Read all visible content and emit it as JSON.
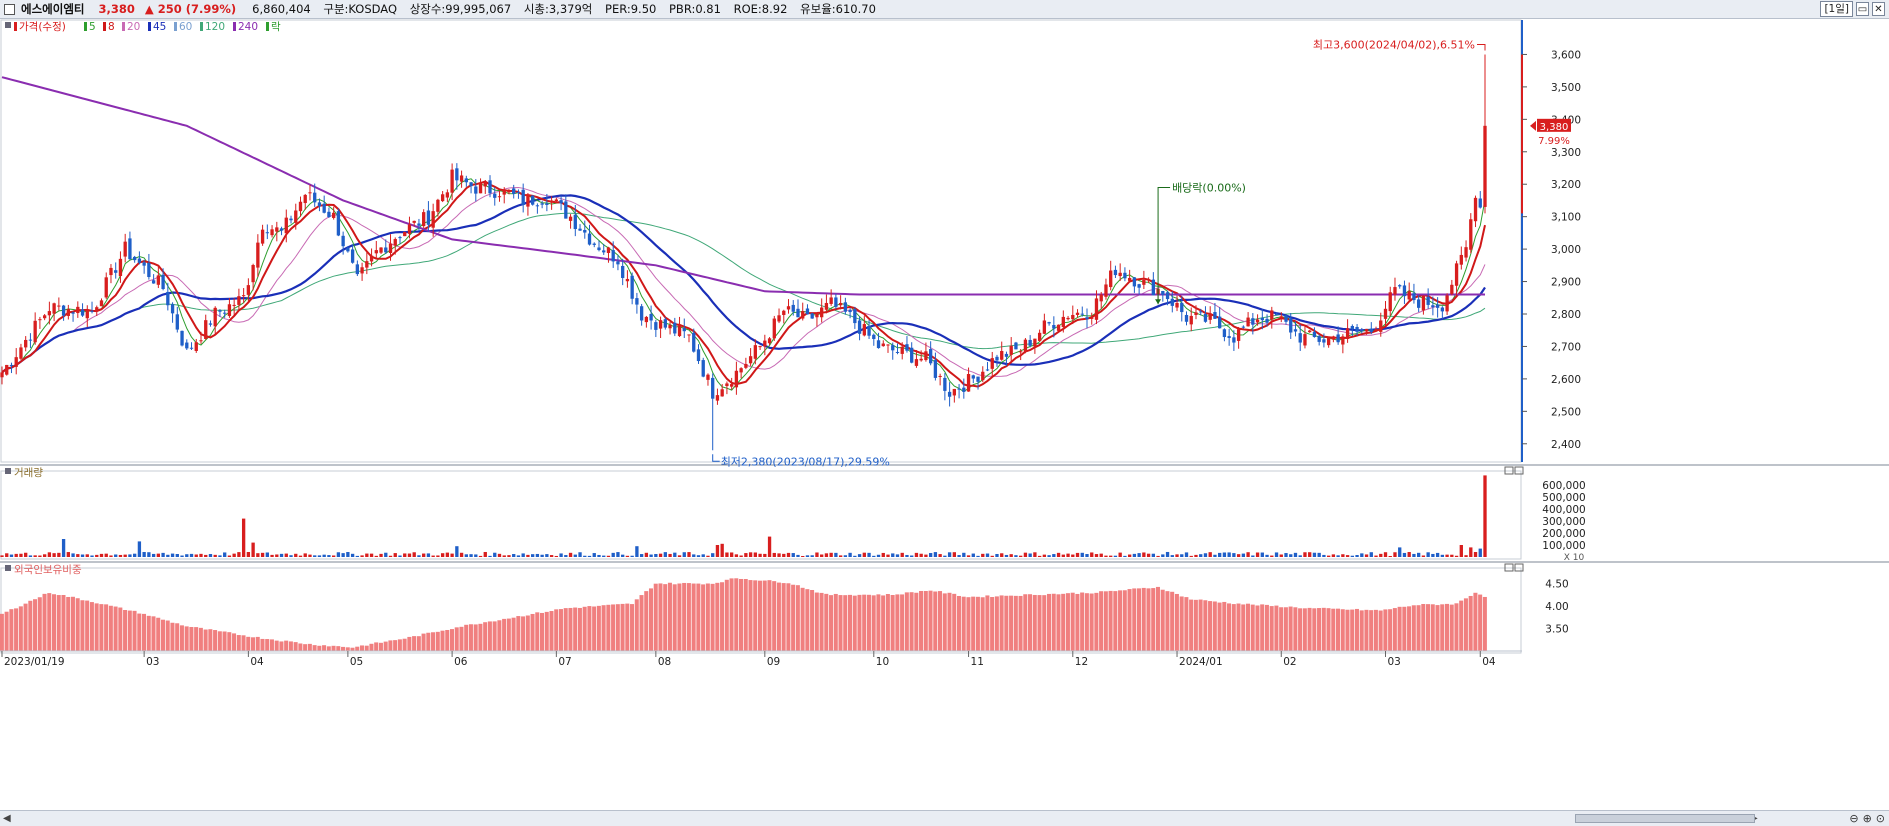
{
  "title_bar": {
    "name": "에스에이엠티",
    "price": "3,380",
    "change": "▲ 250",
    "change_pct": "(7.99%)",
    "volume": "6,860,404",
    "market": "구분:KOSDAQ",
    "shares": "상장수:99,995,067",
    "mcap": "시총:3,379억",
    "per": "PER:9.50",
    "pbr": "PBR:0.81",
    "roe": "ROE:8.92",
    "turnover": "유보율:610.70",
    "period": "[1일]"
  },
  "colors": {
    "up": "#d81e1e",
    "down": "#1f5fc8",
    "ma5": "#2e9e2e",
    "ma8": "#d01818",
    "ma20": "#c86ab4",
    "ma45": "#1a2fb8",
    "ma60": "#7aa0d0",
    "ma120": "#40a878",
    "ma240": "#8a2db0",
    "foreign": "#f07f7f"
  },
  "chart_data": [
    {
      "type": "candlestick",
      "legend": [
        "가격(수정)",
        "5",
        "8",
        "20",
        "45",
        "60",
        "120",
        "240",
        "락"
      ],
      "ylim": [
        2350,
        3700
      ],
      "y_ticks": [
        "3,600",
        "3,500",
        "3,400",
        "3,300",
        "3,200",
        "3,100",
        "3,000",
        "2,900",
        "2,800",
        "2,700",
        "2,600",
        "2,500",
        "2,400"
      ],
      "x_ticks": [
        "2023/01/19",
        "03",
        "04",
        "05",
        "06",
        "07",
        "08",
        "09",
        "10",
        "11",
        "12",
        "2024/01",
        "02",
        "03",
        "04"
      ],
      "current_price_label": "3,380",
      "current_pct_label": "7.99%",
      "high_annotation": "최고3,600(2024/04/02),6.51%",
      "low_annotation": "최저2,380(2023/08/17),29.59%",
      "dividend_annotation": "배당락(0.00%)",
      "anchors": [
        [
          "2023-01-19",
          2620
        ],
        [
          "2023-02-02",
          2820
        ],
        [
          "2023-02-15",
          2810
        ],
        [
          "2023-02-24",
          3000
        ],
        [
          "2023-03-08",
          2880
        ],
        [
          "2023-03-15",
          2680
        ],
        [
          "2023-03-23",
          2800
        ],
        [
          "2023-03-31",
          2850
        ],
        [
          "2023-04-06",
          3080
        ],
        [
          "2023-04-12",
          3050
        ],
        [
          "2023-04-19",
          3170
        ],
        [
          "2023-04-27",
          3100
        ],
        [
          "2023-05-04",
          2900
        ],
        [
          "2023-05-10",
          2990
        ],
        [
          "2023-05-17",
          3050
        ],
        [
          "2023-05-25",
          3100
        ],
        [
          "2023-06-01",
          3220
        ],
        [
          "2023-06-08",
          3190
        ],
        [
          "2023-06-15",
          3180
        ],
        [
          "2023-06-22",
          3150
        ],
        [
          "2023-06-29",
          3160
        ],
        [
          "2023-07-06",
          3100
        ],
        [
          "2023-07-13",
          3020
        ],
        [
          "2023-07-20",
          2970
        ],
        [
          "2023-07-27",
          2800
        ],
        [
          "2023-08-03",
          2760
        ],
        [
          "2023-08-10",
          2730
        ],
        [
          "2023-08-17",
          2560
        ],
        [
          "2023-08-24",
          2620
        ],
        [
          "2023-08-31",
          2700
        ],
        [
          "2023-09-07",
          2810
        ],
        [
          "2023-09-14",
          2780
        ],
        [
          "2023-09-21",
          2830
        ],
        [
          "2023-09-27",
          2790
        ],
        [
          "2023-10-05",
          2700
        ],
        [
          "2023-10-12",
          2680
        ],
        [
          "2023-10-19",
          2660
        ],
        [
          "2023-10-26",
          2560
        ],
        [
          "2023-11-02",
          2600
        ],
        [
          "2023-11-09",
          2670
        ],
        [
          "2023-11-16",
          2690
        ],
        [
          "2023-11-23",
          2760
        ],
        [
          "2023-11-30",
          2800
        ],
        [
          "2023-12-07",
          2810
        ],
        [
          "2023-12-14",
          2940
        ],
        [
          "2023-12-21",
          2900
        ],
        [
          "2023-12-28",
          2870
        ],
        [
          "2024-01-04",
          2790
        ],
        [
          "2024-01-11",
          2780
        ],
        [
          "2024-01-18",
          2730
        ],
        [
          "2024-01-25",
          2790
        ],
        [
          "2024-01-31",
          2790
        ],
        [
          "2024-02-07",
          2730
        ],
        [
          "2024-02-14",
          2720
        ],
        [
          "2024-02-21",
          2740
        ],
        [
          "2024-02-28",
          2750
        ],
        [
          "2024-03-06",
          2870
        ],
        [
          "2024-03-13",
          2840
        ],
        [
          "2024-03-20",
          2830
        ],
        [
          "2024-03-27",
          3000
        ],
        [
          "2024-03-29",
          3180
        ],
        [
          "2024-04-01",
          3130
        ],
        [
          "2024-04-02",
          3380
        ]
      ],
      "ma240_anchors": [
        [
          "2023-01-19",
          3530
        ],
        [
          "2023-03-15",
          3380
        ],
        [
          "2023-05-01",
          3150
        ],
        [
          "2023-06-01",
          3030
        ],
        [
          "2023-07-03",
          2990
        ],
        [
          "2023-08-01",
          2950
        ],
        [
          "2023-09-01",
          2870
        ],
        [
          "2023-10-01",
          2860
        ],
        [
          "2024-01-01",
          2860
        ],
        [
          "2024-04-02",
          2860
        ]
      ]
    },
    {
      "type": "bar",
      "legend": [
        "거래량"
      ],
      "ylim": [
        0,
        700000
      ],
      "y_ticks": [
        "600,000",
        "500,000",
        "400,000",
        "300,000",
        "200,000",
        "100,000"
      ],
      "unit_label": "X 10",
      "baseline": 28000,
      "spikes": [
        [
          "2023-02-07",
          150000
        ],
        [
          "2023-03-01",
          130000
        ],
        [
          "2023-03-31",
          320000
        ],
        [
          "2023-04-04",
          120000
        ],
        [
          "2023-06-02",
          90000
        ],
        [
          "2023-07-26",
          90000
        ],
        [
          "2023-08-18",
          100000
        ],
        [
          "2023-08-21",
          110000
        ],
        [
          "2023-09-04",
          170000
        ],
        [
          "2024-03-07",
          80000
        ],
        [
          "2024-03-26",
          100000
        ],
        [
          "2024-03-28",
          80000
        ],
        [
          "2024-04-01",
          70000
        ],
        [
          "2024-04-02",
          680000
        ]
      ]
    },
    {
      "type": "bar",
      "legend": [
        "외국인보유비중"
      ],
      "ylim": [
        3.0,
        4.8
      ],
      "y_ticks": [
        "4.50",
        "4.00",
        "3.50"
      ],
      "anchors": [
        [
          "2023-01-19",
          3.82
        ],
        [
          "2023-02-02",
          4.3
        ],
        [
          "2023-02-15",
          4.1
        ],
        [
          "2023-03-01",
          3.85
        ],
        [
          "2023-03-15",
          3.55
        ],
        [
          "2023-04-05",
          3.3
        ],
        [
          "2023-04-20",
          3.15
        ],
        [
          "2023-05-03",
          3.08
        ],
        [
          "2023-05-20",
          3.3
        ],
        [
          "2023-06-05",
          3.55
        ],
        [
          "2023-06-20",
          3.75
        ],
        [
          "2023-07-05",
          3.95
        ],
        [
          "2023-07-25",
          4.05
        ],
        [
          "2023-08-01",
          4.5
        ],
        [
          "2023-08-17",
          4.5
        ],
        [
          "2023-08-24",
          4.62
        ],
        [
          "2023-09-10",
          4.52
        ],
        [
          "2023-09-20",
          4.25
        ],
        [
          "2023-10-10",
          4.25
        ],
        [
          "2023-10-20",
          4.35
        ],
        [
          "2023-11-01",
          4.2
        ],
        [
          "2023-11-20",
          4.25
        ],
        [
          "2023-12-10",
          4.3
        ],
        [
          "2023-12-27",
          4.42
        ],
        [
          "2024-01-05",
          4.15
        ],
        [
          "2024-01-20",
          4.05
        ],
        [
          "2024-02-10",
          3.95
        ],
        [
          "2024-03-01",
          3.9
        ],
        [
          "2024-03-12",
          4.02
        ],
        [
          "2024-03-25",
          4.05
        ],
        [
          "2024-03-29",
          4.3
        ],
        [
          "2024-04-02",
          4.22
        ]
      ]
    }
  ]
}
